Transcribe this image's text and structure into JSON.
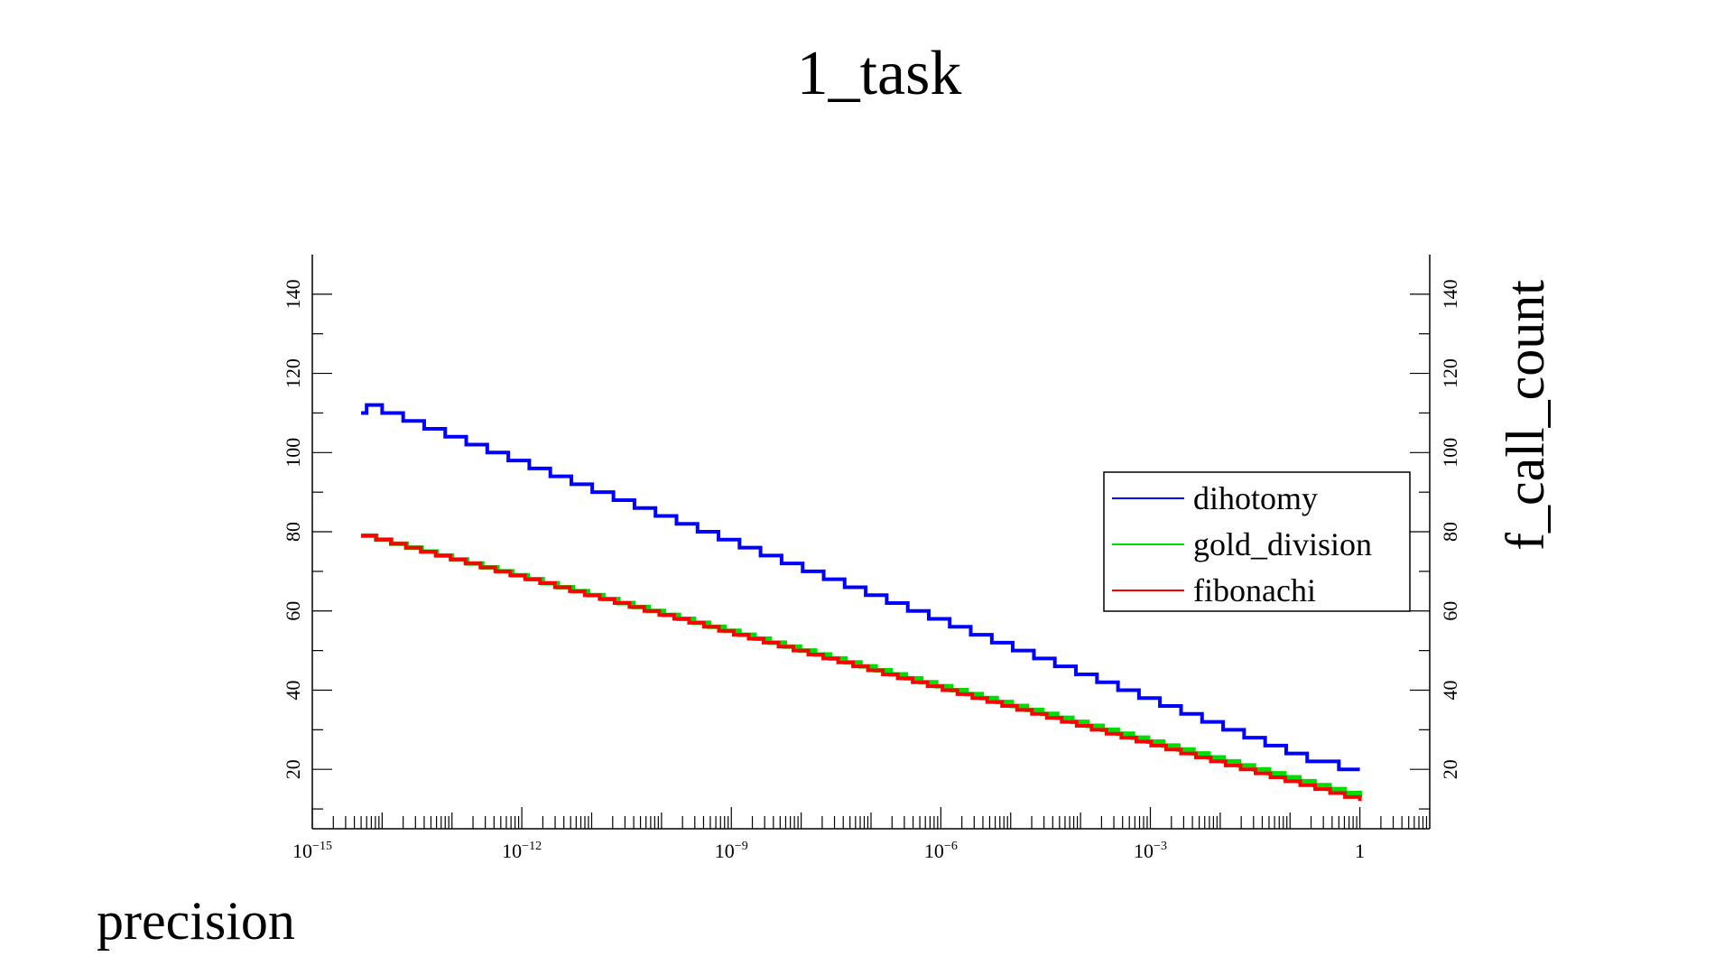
{
  "chart_data": {
    "type": "line",
    "title": "1_task",
    "xlabel": "precision",
    "ylabel": "f_call_count",
    "x_scale": "log",
    "xlim": [
      1e-15,
      10
    ],
    "ylim": [
      5,
      150
    ],
    "x_tick_labels": [
      {
        "value": 1e-15,
        "base": "10",
        "exp": "−15"
      },
      {
        "value": 1e-12,
        "base": "10",
        "exp": "−12"
      },
      {
        "value": 1e-09,
        "base": "10",
        "exp": "−9"
      },
      {
        "value": 1e-06,
        "base": "10",
        "exp": "−6"
      },
      {
        "value": 0.001,
        "base": "10",
        "exp": "−3"
      },
      {
        "value": 1,
        "base": "1",
        "exp": ""
      }
    ],
    "y_ticks": [
      20,
      40,
      60,
      80,
      100,
      120,
      140
    ],
    "grid": false,
    "legend_position": "right",
    "series": [
      {
        "name": "dihotomy",
        "color": "#0000ff",
        "points": [
          [
            5e-15,
            110
          ],
          [
            6e-15,
            112
          ],
          [
            1e-14,
            110
          ],
          [
            2e-14,
            108
          ],
          [
            4e-14,
            106
          ],
          [
            8e-14,
            104
          ],
          [
            1.6e-13,
            102
          ],
          [
            3.2e-13,
            100
          ],
          [
            6.4e-13,
            98
          ],
          [
            1.28e-12,
            96
          ],
          [
            2.56e-12,
            94
          ],
          [
            5.12e-12,
            92
          ],
          [
            1.02e-11,
            90
          ],
          [
            2.05e-11,
            88
          ],
          [
            4.1e-11,
            86
          ],
          [
            8.2e-11,
            84
          ],
          [
            1.64e-10,
            82
          ],
          [
            3.28e-10,
            80
          ],
          [
            6.55e-10,
            78
          ],
          [
            1.31e-09,
            76
          ],
          [
            2.62e-09,
            74
          ],
          [
            5.24e-09,
            72
          ],
          [
            1.05e-08,
            70
          ],
          [
            2.1e-08,
            68
          ],
          [
            4.19e-08,
            66
          ],
          [
            8.39e-08,
            64
          ],
          [
            1.68e-07,
            62
          ],
          [
            3.36e-07,
            60
          ],
          [
            6.71e-07,
            58
          ],
          [
            1.34e-06,
            56
          ],
          [
            2.68e-06,
            54
          ],
          [
            5.37e-06,
            52
          ],
          [
            1.07e-05,
            50
          ],
          [
            2.15e-05,
            48
          ],
          [
            4.29e-05,
            46
          ],
          [
            8.59e-05,
            44
          ],
          [
            0.000172,
            42
          ],
          [
            0.000344,
            40
          ],
          [
            0.000687,
            38
          ],
          [
            0.00137,
            36
          ],
          [
            0.00275,
            34
          ],
          [
            0.0055,
            32
          ],
          [
            0.011,
            30
          ],
          [
            0.022,
            28
          ],
          [
            0.044,
            26
          ],
          [
            0.088,
            24
          ],
          [
            0.176,
            22
          ],
          [
            0.352,
            22
          ],
          [
            0.5,
            20
          ],
          [
            1,
            20
          ]
        ]
      },
      {
        "name": "gold_division",
        "color": "#00dd00",
        "x_start": 5e-15,
        "x_end": 1,
        "y_start": 79,
        "y_end": 13
      },
      {
        "name": "fibonachi",
        "color": "#ff0000",
        "x_start": 5e-15,
        "x_end": 1,
        "y_start": 79,
        "y_end": 12
      }
    ]
  }
}
